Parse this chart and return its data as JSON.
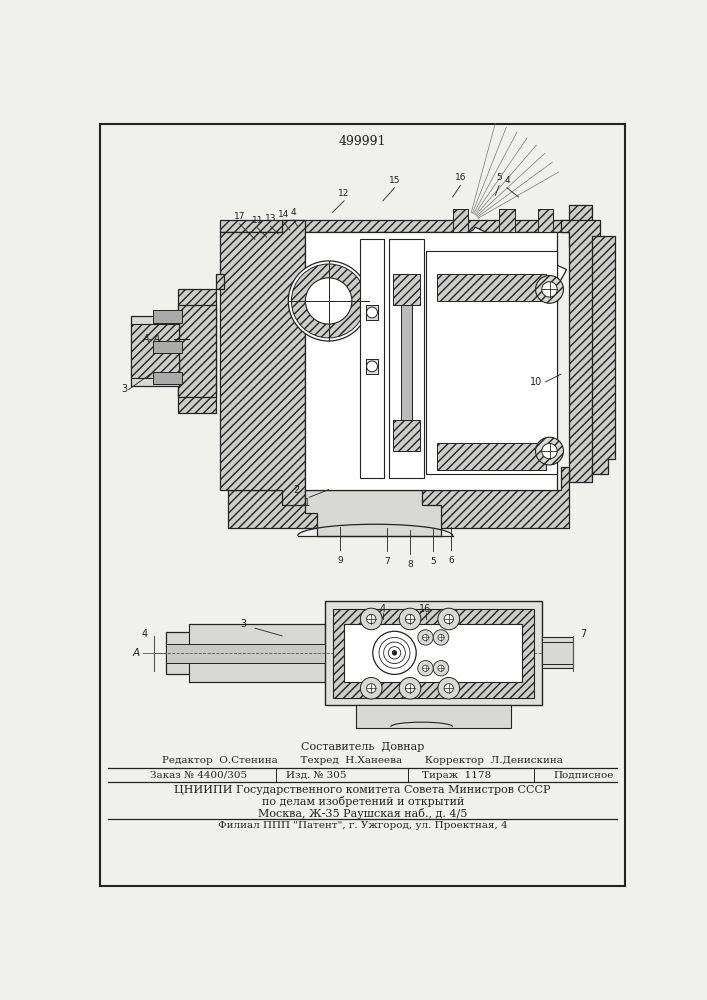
{
  "patent_number": "499991",
  "bg_color": "#f0f0ec",
  "paper_color": "#f7f7f4",
  "hatch_color": "#555555",
  "line_color": "#222222",
  "sestavitel_line": "Составитель  Довнар",
  "editor_line": "Редактор  О.Стенина       Техред  Н.Ханеева       Корректор  Л.Денискина",
  "order_parts": [
    "Заказ № 4400/305",
    "Изд. № 305",
    "Тираж  1178",
    "Подписное"
  ],
  "org_line1": "ЦНИИПИ Государственного комитета Совета Министров СССР",
  "org_line2": "по делам изобретений и открытий",
  "org_line3": "Москва, Ж-35 Раушская наб., д. 4/5",
  "filial_line": "Филиал ППП \"Патент\", г. Ужгород, ул. Проектная, 4"
}
